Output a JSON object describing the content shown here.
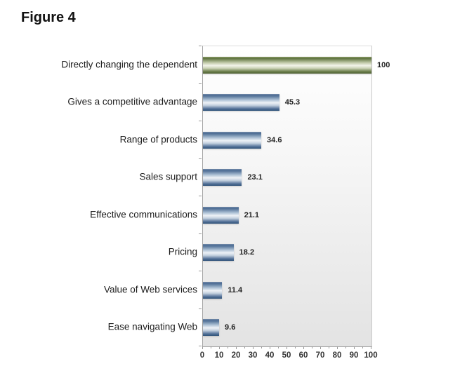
{
  "figure": {
    "title": "Figure 4"
  },
  "chart_data": {
    "type": "bar",
    "orientation": "horizontal",
    "title": "Figure 4",
    "categories": [
      "Directly changing the dependent",
      "Gives a competitive advantage",
      "Range of products",
      "Sales support",
      "Effective communications",
      "Pricing",
      "Value of Web services",
      "Ease navigating Web"
    ],
    "values": [
      100,
      45.3,
      34.6,
      23.1,
      21.1,
      18.2,
      11.4,
      9.6
    ],
    "value_labels": [
      "100",
      "45.3",
      "34.6",
      "23.1",
      "21.1",
      "18.2",
      "11.4",
      "9.6"
    ],
    "xlabel": "",
    "ylabel": "",
    "xlim": [
      0,
      100
    ],
    "x_major_tick_step": 10,
    "x_minor_tick_step": 5,
    "x_tick_labels": [
      "0",
      "10",
      "20",
      "30",
      "40",
      "50",
      "60",
      "70",
      "80",
      "90",
      "100"
    ],
    "grid": false,
    "legend": null,
    "highlight_index": 0,
    "colors": {
      "bar_highlight_dark": "#5f7340",
      "bar_highlight_light": "#f2f4ea",
      "bar_default_dark": "#2e5178",
      "bar_default_light": "#eef2f7",
      "plot_bg_top": "#ffffff",
      "plot_bg_bottom": "#e3e3e3",
      "axis_line": "#a6a6a6",
      "text": "#1c1c1c"
    }
  }
}
